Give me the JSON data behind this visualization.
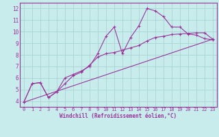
{
  "xlabel": "Windchill (Refroidissement éolien,°C)",
  "background_color": "#c8ecec",
  "grid_color": "#aad4d4",
  "line_color": "#993399",
  "xlim": [
    -0.5,
    23.5
  ],
  "ylim": [
    3.5,
    12.5
  ],
  "xticks": [
    0,
    1,
    2,
    3,
    4,
    5,
    6,
    7,
    8,
    9,
    10,
    11,
    12,
    13,
    14,
    15,
    16,
    17,
    18,
    19,
    20,
    21,
    22,
    23
  ],
  "yticks": [
    4,
    5,
    6,
    7,
    8,
    9,
    10,
    11,
    12
  ],
  "line1_x": [
    0,
    1,
    2,
    3,
    4,
    5,
    6,
    7,
    8,
    9,
    10,
    11,
    12,
    13,
    14,
    15,
    16,
    17,
    18,
    19,
    20,
    21,
    22,
    23
  ],
  "line1_y": [
    3.9,
    5.5,
    5.6,
    4.3,
    4.8,
    6.0,
    6.3,
    6.6,
    7.0,
    8.1,
    9.6,
    10.4,
    8.1,
    9.5,
    10.5,
    12.0,
    11.8,
    11.3,
    10.4,
    10.4,
    9.8,
    9.7,
    9.4,
    9.3
  ],
  "line2_x": [
    0,
    1,
    2,
    3,
    4,
    5,
    6,
    7,
    8,
    9,
    10,
    11,
    12,
    13,
    14,
    15,
    16,
    17,
    18,
    19,
    20,
    21,
    22,
    23
  ],
  "line2_y": [
    3.9,
    5.5,
    5.6,
    4.3,
    4.8,
    5.5,
    6.2,
    6.5,
    7.1,
    7.8,
    8.1,
    8.2,
    8.4,
    8.6,
    8.8,
    9.2,
    9.5,
    9.6,
    9.75,
    9.8,
    9.85,
    9.9,
    9.9,
    9.35
  ],
  "line3_x": [
    0,
    23
  ],
  "line3_y": [
    3.9,
    9.35
  ]
}
